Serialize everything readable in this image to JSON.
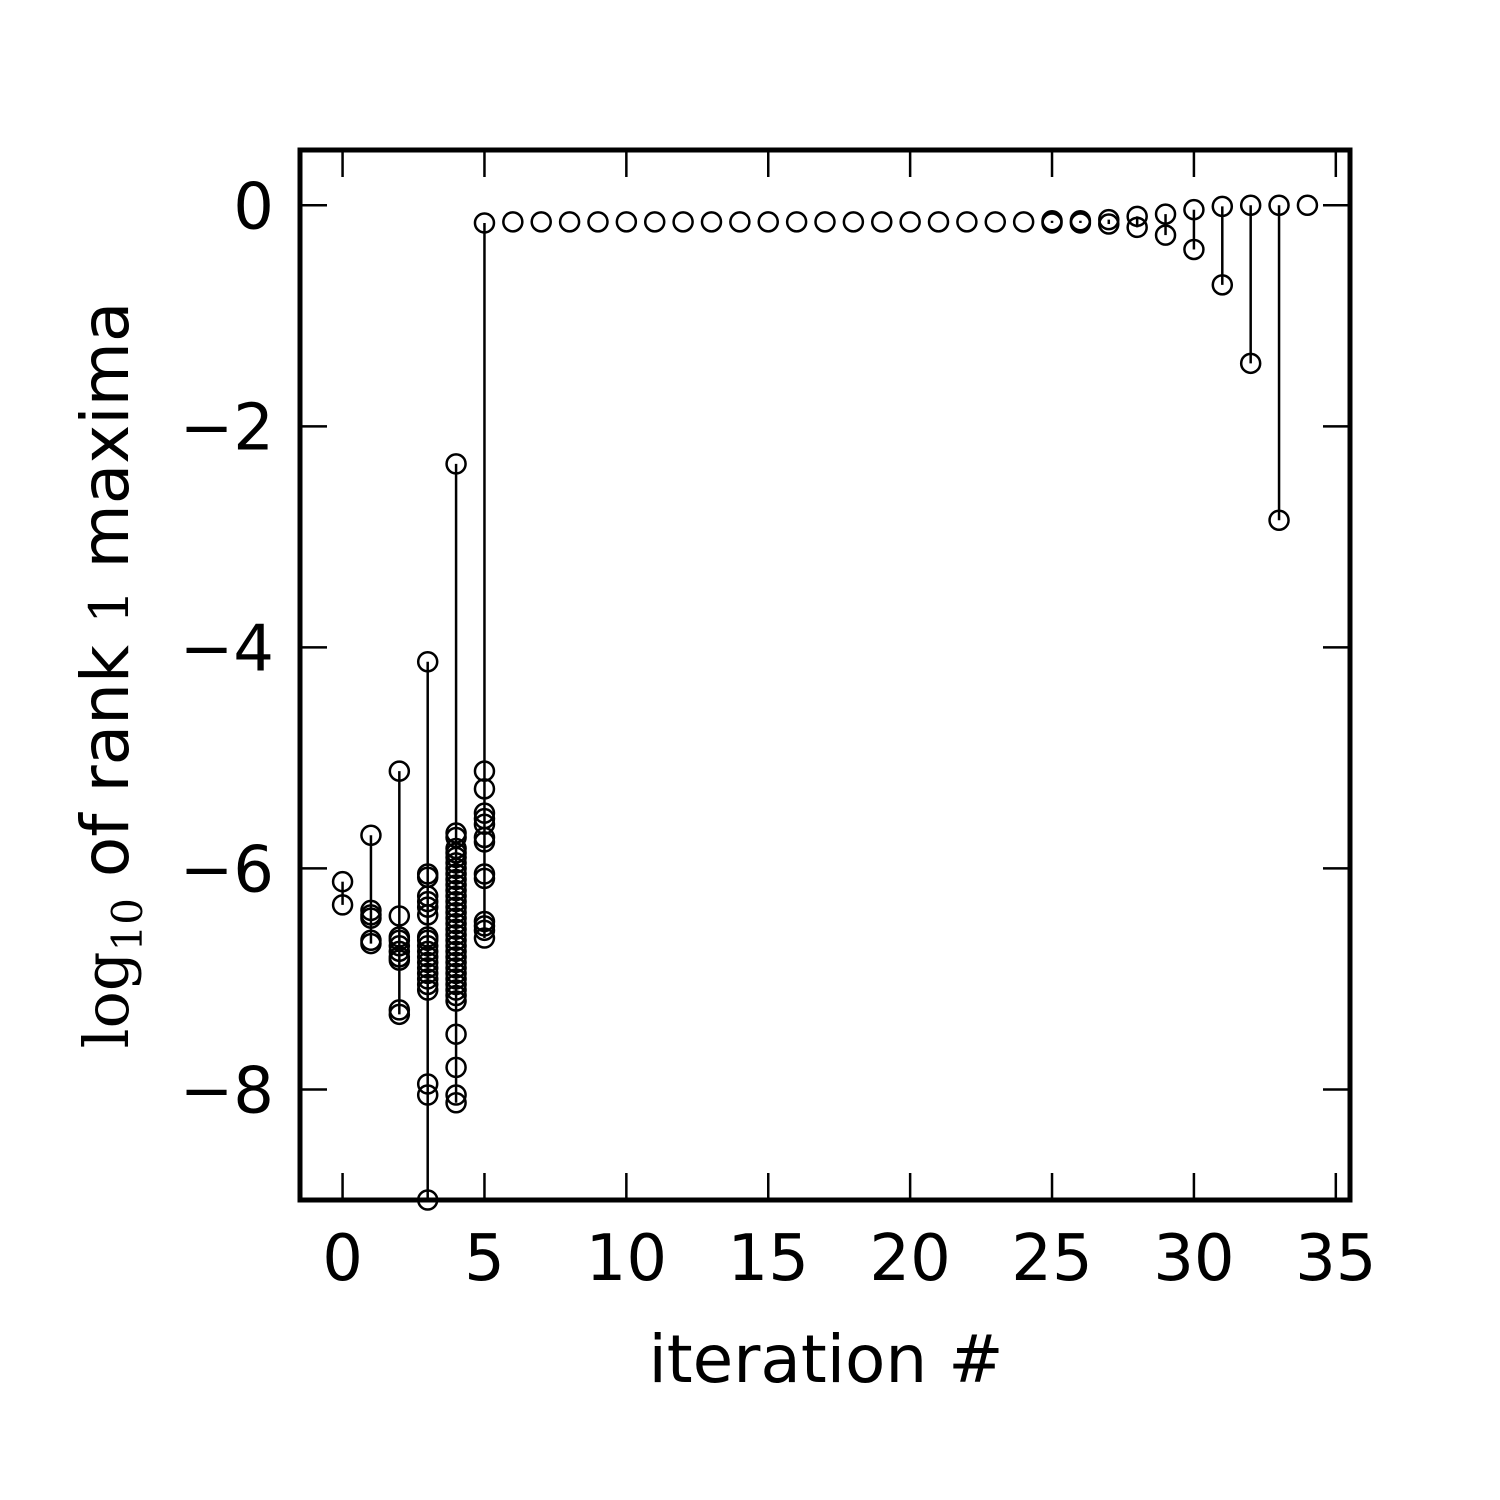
{
  "chart_data": {
    "type": "scatter",
    "title": "",
    "xlabel": "iteration #",
    "ylabel_parts": [
      "log",
      "10",
      " of rank ",
      "1",
      " maxima"
    ],
    "xlim": [
      -1.5,
      35.5
    ],
    "ylim": [
      -9.0,
      0.5
    ],
    "xticks": [
      0,
      5,
      10,
      15,
      20,
      25,
      30,
      35
    ],
    "yticks": [
      0,
      -2,
      -4,
      -6,
      -8
    ],
    "xtick_labels": [
      "0",
      "5",
      "10",
      "15",
      "20",
      "25",
      "30",
      "35"
    ],
    "ytick_labels": [
      "0",
      "−2",
      "−4",
      "−6",
      "−8"
    ],
    "grid": false,
    "marker": "open-circle",
    "color": "#000000",
    "points_by_iteration": [
      {
        "x": 0,
        "y": [
          -6.12,
          -6.33
        ]
      },
      {
        "x": 1,
        "y": [
          -5.7,
          -6.38,
          -6.42,
          -6.45,
          -6.65,
          -6.68
        ]
      },
      {
        "x": 2,
        "y": [
          -5.12,
          -6.43,
          -6.62,
          -6.65,
          -6.7,
          -6.75,
          -6.8,
          -6.83,
          -7.28,
          -7.32
        ]
      },
      {
        "x": 3,
        "y": [
          -4.13,
          -6.05,
          -6.08,
          -6.25,
          -6.3,
          -6.35,
          -6.42,
          -6.62,
          -6.65,
          -6.7,
          -6.75,
          -6.8,
          -6.85,
          -6.9,
          -6.95,
          -7.0,
          -7.05,
          -7.1,
          -7.95,
          -8.05,
          -9.0
        ]
      },
      {
        "x": 4,
        "y": [
          -2.34,
          -5.68,
          -5.72,
          -5.82,
          -5.86,
          -5.9,
          -5.95,
          -6.0,
          -6.05,
          -6.1,
          -6.15,
          -6.2,
          -6.25,
          -6.3,
          -6.35,
          -6.4,
          -6.45,
          -6.5,
          -6.55,
          -6.6,
          -6.65,
          -6.7,
          -6.75,
          -6.8,
          -6.85,
          -6.9,
          -6.95,
          -7.0,
          -7.05,
          -7.1,
          -7.15,
          -7.2,
          -7.5,
          -7.8,
          -8.05,
          -8.12
        ]
      },
      {
        "x": 5,
        "y": [
          -0.16,
          -5.12,
          -5.28,
          -5.5,
          -5.55,
          -5.6,
          -5.72,
          -5.76,
          -6.05,
          -6.09,
          -6.48,
          -6.52,
          -6.56,
          -6.63
        ]
      },
      {
        "x": 6,
        "y": [
          -0.15
        ]
      },
      {
        "x": 7,
        "y": [
          -0.15
        ]
      },
      {
        "x": 8,
        "y": [
          -0.15
        ]
      },
      {
        "x": 9,
        "y": [
          -0.15
        ]
      },
      {
        "x": 10,
        "y": [
          -0.15
        ]
      },
      {
        "x": 11,
        "y": [
          -0.15
        ]
      },
      {
        "x": 12,
        "y": [
          -0.15
        ]
      },
      {
        "x": 13,
        "y": [
          -0.15
        ]
      },
      {
        "x": 14,
        "y": [
          -0.15
        ]
      },
      {
        "x": 15,
        "y": [
          -0.15
        ]
      },
      {
        "x": 16,
        "y": [
          -0.15
        ]
      },
      {
        "x": 17,
        "y": [
          -0.15
        ]
      },
      {
        "x": 18,
        "y": [
          -0.15
        ]
      },
      {
        "x": 19,
        "y": [
          -0.15
        ]
      },
      {
        "x": 20,
        "y": [
          -0.15
        ]
      },
      {
        "x": 21,
        "y": [
          -0.15
        ]
      },
      {
        "x": 22,
        "y": [
          -0.15
        ]
      },
      {
        "x": 23,
        "y": [
          -0.15
        ]
      },
      {
        "x": 24,
        "y": [
          -0.15
        ]
      },
      {
        "x": 25,
        "y": [
          -0.14,
          -0.16
        ]
      },
      {
        "x": 26,
        "y": [
          -0.14,
          -0.16
        ]
      },
      {
        "x": 27,
        "y": [
          -0.13,
          -0.17
        ]
      },
      {
        "x": 28,
        "y": [
          -0.1,
          -0.2
        ]
      },
      {
        "x": 29,
        "y": [
          -0.08,
          -0.27
        ]
      },
      {
        "x": 30,
        "y": [
          -0.04,
          -0.4
        ]
      },
      {
        "x": 31,
        "y": [
          -0.01,
          -0.72
        ]
      },
      {
        "x": 32,
        "y": [
          0.0,
          -1.43
        ]
      },
      {
        "x": 33,
        "y": [
          0.0,
          -2.85
        ]
      },
      {
        "x": 34,
        "y": [
          0.0
        ]
      }
    ]
  }
}
